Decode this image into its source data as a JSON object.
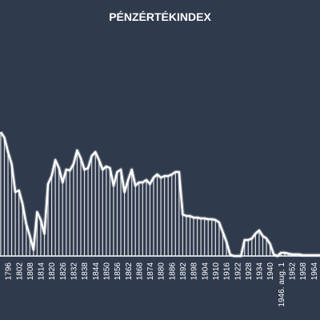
{
  "chart_data": {
    "type": "line",
    "title": "PÉNZÉRTÉKINDEX",
    "categories": [
      null,
      null,
      "1796",
      null,
      null,
      "1802",
      null,
      null,
      "1808",
      null,
      null,
      "1814",
      null,
      null,
      "1820",
      null,
      null,
      "1826",
      null,
      null,
      "1832",
      null,
      null,
      "1838",
      null,
      null,
      "1844",
      null,
      null,
      "1850",
      null,
      null,
      "1856",
      null,
      null,
      "1862",
      null,
      null,
      "1868",
      null,
      null,
      "1874",
      null,
      null,
      "1880",
      null,
      null,
      "1886",
      null,
      null,
      "1892",
      null,
      null,
      "1898",
      null,
      null,
      "1904",
      null,
      null,
      "1910",
      null,
      null,
      "1916",
      null,
      null,
      "1922",
      null,
      null,
      "1928",
      null,
      null,
      "1934",
      null,
      null,
      "1940",
      null,
      null,
      "1946. aug. 1",
      null,
      null,
      "1952",
      null,
      null,
      "1958",
      null,
      null,
      "1964",
      null,
      null
    ],
    "values": [
      155,
      148,
      130,
      115,
      80,
      82,
      65,
      40,
      25,
      8,
      55,
      45,
      28,
      90,
      100,
      120,
      110,
      92,
      108,
      107,
      115,
      132,
      122,
      108,
      110,
      125,
      130,
      120,
      108,
      112,
      110,
      88,
      105,
      108,
      80,
      95,
      108,
      88,
      92,
      92,
      95,
      90,
      98,
      102,
      98,
      100,
      100,
      102,
      105,
      105,
      52,
      50,
      50,
      48,
      48,
      47,
      47,
      46,
      46,
      45,
      42,
      30,
      18,
      2,
      0,
      0,
      0,
      20,
      20,
      22,
      28,
      32,
      25,
      22,
      15,
      2,
      0,
      4,
      4,
      3,
      2,
      2,
      2,
      1,
      1,
      1,
      1,
      1,
      1
    ],
    "color": "#ffffff",
    "ylim": [
      0,
      200
    ],
    "drop_lines": true
  }
}
